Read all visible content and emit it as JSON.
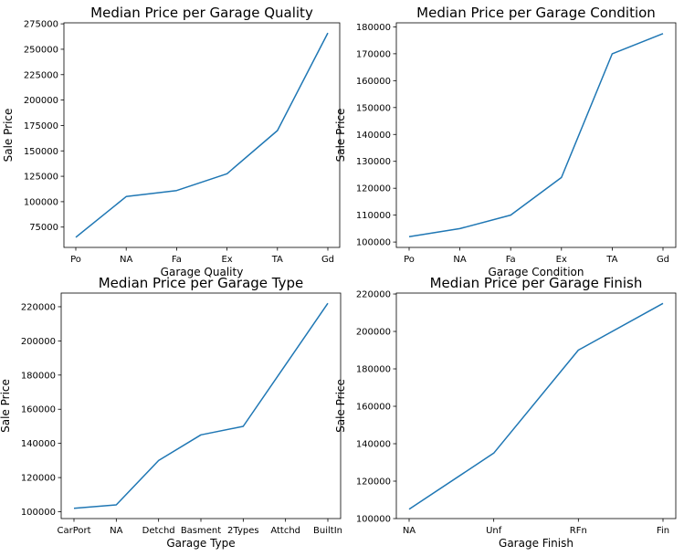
{
  "colors": {
    "line": "#1f77b4"
  },
  "chart_data": [
    {
      "type": "line",
      "title": "Median Price per Garage Quality",
      "xlabel": "Garage Quality",
      "ylabel": "Sale Price",
      "categories": [
        "Po",
        "NA",
        "Fa",
        "Ex",
        "TA",
        "Gd"
      ],
      "series": [
        {
          "values": [
            64950,
            105000,
            111000,
            127500,
            170000,
            266000
          ]
        }
      ],
      "ylim": [
        55000,
        276000
      ],
      "yticks": [
        75000,
        100000,
        125000,
        150000,
        175000,
        200000,
        225000,
        250000,
        275000
      ],
      "grid": false
    },
    {
      "type": "line",
      "title": "Median Price per Garage Condition",
      "xlabel": "Garage Condition",
      "ylabel": "Sale Price",
      "categories": [
        "Po",
        "NA",
        "Fa",
        "Ex",
        "TA",
        "Gd"
      ],
      "series": [
        {
          "values": [
            102000,
            105000,
            110000,
            124000,
            170000,
            177500
          ]
        }
      ],
      "ylim": [
        98000,
        181500
      ],
      "yticks": [
        100000,
        110000,
        120000,
        130000,
        140000,
        150000,
        160000,
        170000,
        180000
      ],
      "grid": false
    },
    {
      "type": "line",
      "title": "Median Price per Garage Type",
      "xlabel": "Garage Type",
      "ylabel": "Sale Price",
      "categories": [
        "CarPort",
        "NA",
        "Detchd",
        "Basment",
        "2Types",
        "Attchd",
        "BuiltIn"
      ],
      "series": [
        {
          "values": [
            102000,
            104000,
            130000,
            145000,
            150000,
            186000,
            222000
          ]
        }
      ],
      "ylim": [
        96000,
        228000
      ],
      "yticks": [
        100000,
        120000,
        140000,
        160000,
        180000,
        200000,
        220000
      ],
      "grid": false
    },
    {
      "type": "line",
      "title": "Median Price per Garage Finish",
      "xlabel": "Garage Finish",
      "ylabel": "Sale Price",
      "categories": [
        "NA",
        "Unf",
        "RFn",
        "Fin"
      ],
      "series": [
        {
          "values": [
            105000,
            135000,
            190000,
            215000
          ]
        }
      ],
      "ylim": [
        100000,
        220500
      ],
      "yticks": [
        100000,
        120000,
        140000,
        160000,
        180000,
        200000,
        220000
      ],
      "grid": false
    }
  ]
}
